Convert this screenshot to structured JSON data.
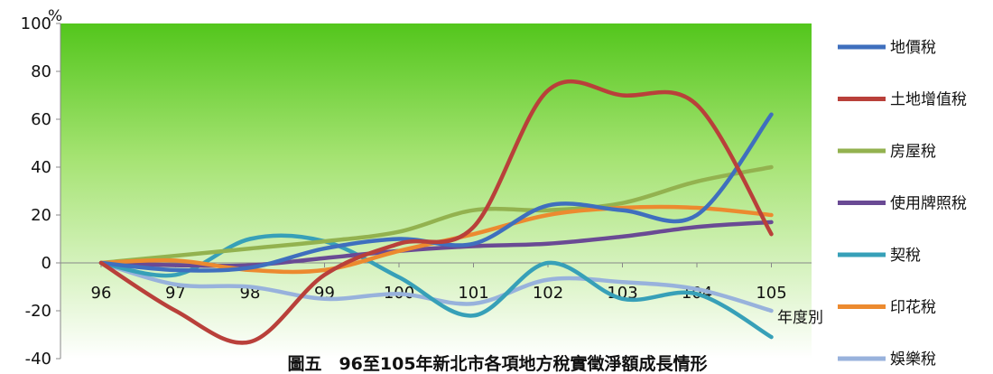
{
  "chart_data": {
    "type": "line",
    "title": "圖五　96至105年新北市各項地方稅實徵淨額成長情形",
    "xlabel": "年度別",
    "ylabel": "%",
    "categories": [
      "96",
      "97",
      "98",
      "99",
      "100",
      "101",
      "102",
      "103",
      "104",
      "105"
    ],
    "ylim": [
      -40,
      100
    ],
    "yticks": [
      "100",
      "80",
      "60",
      "40",
      "20",
      "0",
      "-20",
      "-40"
    ],
    "legend_position": "right",
    "background": "green-gradient",
    "series": [
      {
        "name": "地價稅",
        "color": "#3f6fbe",
        "values": [
          0,
          -3,
          -2,
          6,
          10,
          8,
          24,
          22,
          20,
          62
        ]
      },
      {
        "name": "土地增值稅",
        "color": "#b9403a",
        "values": [
          0,
          -20,
          -33,
          -5,
          8,
          15,
          72,
          70,
          66,
          12
        ]
      },
      {
        "name": "房屋稅",
        "color": "#93b24f",
        "values": [
          0,
          3,
          6,
          9,
          13,
          22,
          22,
          25,
          34,
          40
        ]
      },
      {
        "name": "使用牌照稅",
        "color": "#6a4a94",
        "values": [
          0,
          -1,
          -1,
          2,
          5,
          7,
          8,
          11,
          15,
          17
        ]
      },
      {
        "name": "契稅",
        "color": "#37a0b8",
        "values": [
          0,
          -5,
          10,
          9,
          -6,
          -22,
          0,
          -15,
          -13,
          -31
        ]
      },
      {
        "name": "印花稅",
        "color": "#ec8a2f",
        "values": [
          0,
          1,
          -3,
          -3,
          5,
          12,
          20,
          23,
          23,
          20
        ]
      },
      {
        "name": "娛樂稅",
        "color": "#98b2dc",
        "values": [
          0,
          -9,
          -10,
          -15,
          -13,
          -17,
          -7,
          -8,
          -11,
          -20
        ]
      }
    ]
  }
}
